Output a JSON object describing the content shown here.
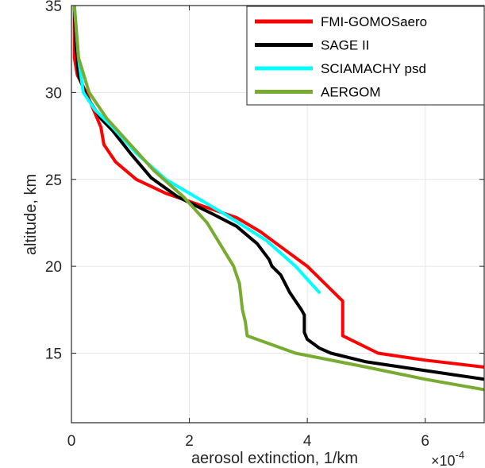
{
  "chart_data": {
    "type": "line",
    "xlabel": "aerosol extinction, 1/km",
    "ylabel": "altitude, km",
    "x_exponent_base": "×10",
    "x_exponent_power": "-4",
    "xlim": [
      0,
      7
    ],
    "ylim": [
      11,
      35
    ],
    "x_ticks": [
      0,
      2,
      4,
      6
    ],
    "x_tick_labels": [
      "0",
      "2",
      "4",
      "6"
    ],
    "y_ticks": [
      15,
      20,
      25,
      30,
      35
    ],
    "y_tick_labels": [
      "15",
      "20",
      "25",
      "30",
      "35"
    ],
    "grid": true,
    "legend_position": "top-right",
    "colors": {
      "axis": "#262626",
      "grid": "#e6e6e6"
    },
    "series": [
      {
        "name": "FMI-GOMOSaero",
        "color": "#ff0000",
        "points": [
          [
            0.05,
            35
          ],
          [
            0.05,
            33
          ],
          [
            0.05,
            32
          ],
          [
            0.1,
            31
          ],
          [
            0.25,
            30
          ],
          [
            0.5,
            28
          ],
          [
            0.55,
            27
          ],
          [
            0.75,
            26
          ],
          [
            1.1,
            25
          ],
          [
            1.6,
            24.2
          ],
          [
            2.2,
            23.5
          ],
          [
            2.8,
            22.8
          ],
          [
            3.2,
            22
          ],
          [
            3.6,
            21
          ],
          [
            4.0,
            20
          ],
          [
            4.3,
            19
          ],
          [
            4.6,
            18
          ],
          [
            4.6,
            17.5
          ],
          [
            4.6,
            17
          ],
          [
            4.6,
            16.5
          ],
          [
            4.6,
            16
          ],
          [
            5.2,
            15
          ],
          [
            6.0,
            14.6
          ],
          [
            7.0,
            14.2
          ]
        ]
      },
      {
        "name": "SAGE II",
        "color": "#000000",
        "points": [
          [
            0.05,
            35
          ],
          [
            0.07,
            33
          ],
          [
            0.12,
            31
          ],
          [
            0.25,
            29.8
          ],
          [
            0.5,
            28.5
          ],
          [
            0.7,
            27.8
          ],
          [
            1.0,
            26.5
          ],
          [
            1.35,
            25.1
          ],
          [
            1.8,
            24
          ],
          [
            2.4,
            23
          ],
          [
            2.8,
            22.3
          ],
          [
            3.15,
            21.3
          ],
          [
            3.35,
            20.4
          ],
          [
            3.4,
            20
          ],
          [
            3.55,
            19.5
          ],
          [
            3.7,
            18.5
          ],
          [
            3.9,
            17.5
          ],
          [
            3.95,
            17.2
          ],
          [
            3.95,
            16.8
          ],
          [
            3.95,
            16.2
          ],
          [
            4.0,
            15.8
          ],
          [
            4.2,
            15.3
          ],
          [
            4.4,
            15
          ],
          [
            5.0,
            14.5
          ],
          [
            6.0,
            14
          ],
          [
            7.0,
            13.5
          ]
        ]
      },
      {
        "name": "SCIAMACHY psd",
        "color": "#00ffff",
        "points": [
          [
            0.05,
            35
          ],
          [
            0.12,
            32
          ],
          [
            0.2,
            30
          ],
          [
            0.4,
            29
          ],
          [
            0.7,
            28
          ],
          [
            1.1,
            26.5
          ],
          [
            1.6,
            25
          ],
          [
            2.6,
            23
          ],
          [
            3.3,
            21.5
          ],
          [
            3.8,
            20
          ],
          [
            4.2,
            18.5
          ]
        ]
      },
      {
        "name": "AERGOM",
        "color": "#77ac30",
        "points": [
          [
            0.05,
            35
          ],
          [
            0.12,
            32
          ],
          [
            0.3,
            30
          ],
          [
            0.6,
            28.5
          ],
          [
            1.0,
            27
          ],
          [
            1.4,
            25.5
          ],
          [
            1.9,
            24
          ],
          [
            2.3,
            22.5
          ],
          [
            2.75,
            20
          ],
          [
            2.85,
            19
          ],
          [
            2.9,
            17.5
          ],
          [
            2.95,
            16.8
          ],
          [
            2.98,
            16
          ],
          [
            3.8,
            15
          ],
          [
            5.0,
            14.2
          ],
          [
            6.0,
            13.5
          ],
          [
            7.0,
            12.9
          ]
        ]
      }
    ]
  }
}
